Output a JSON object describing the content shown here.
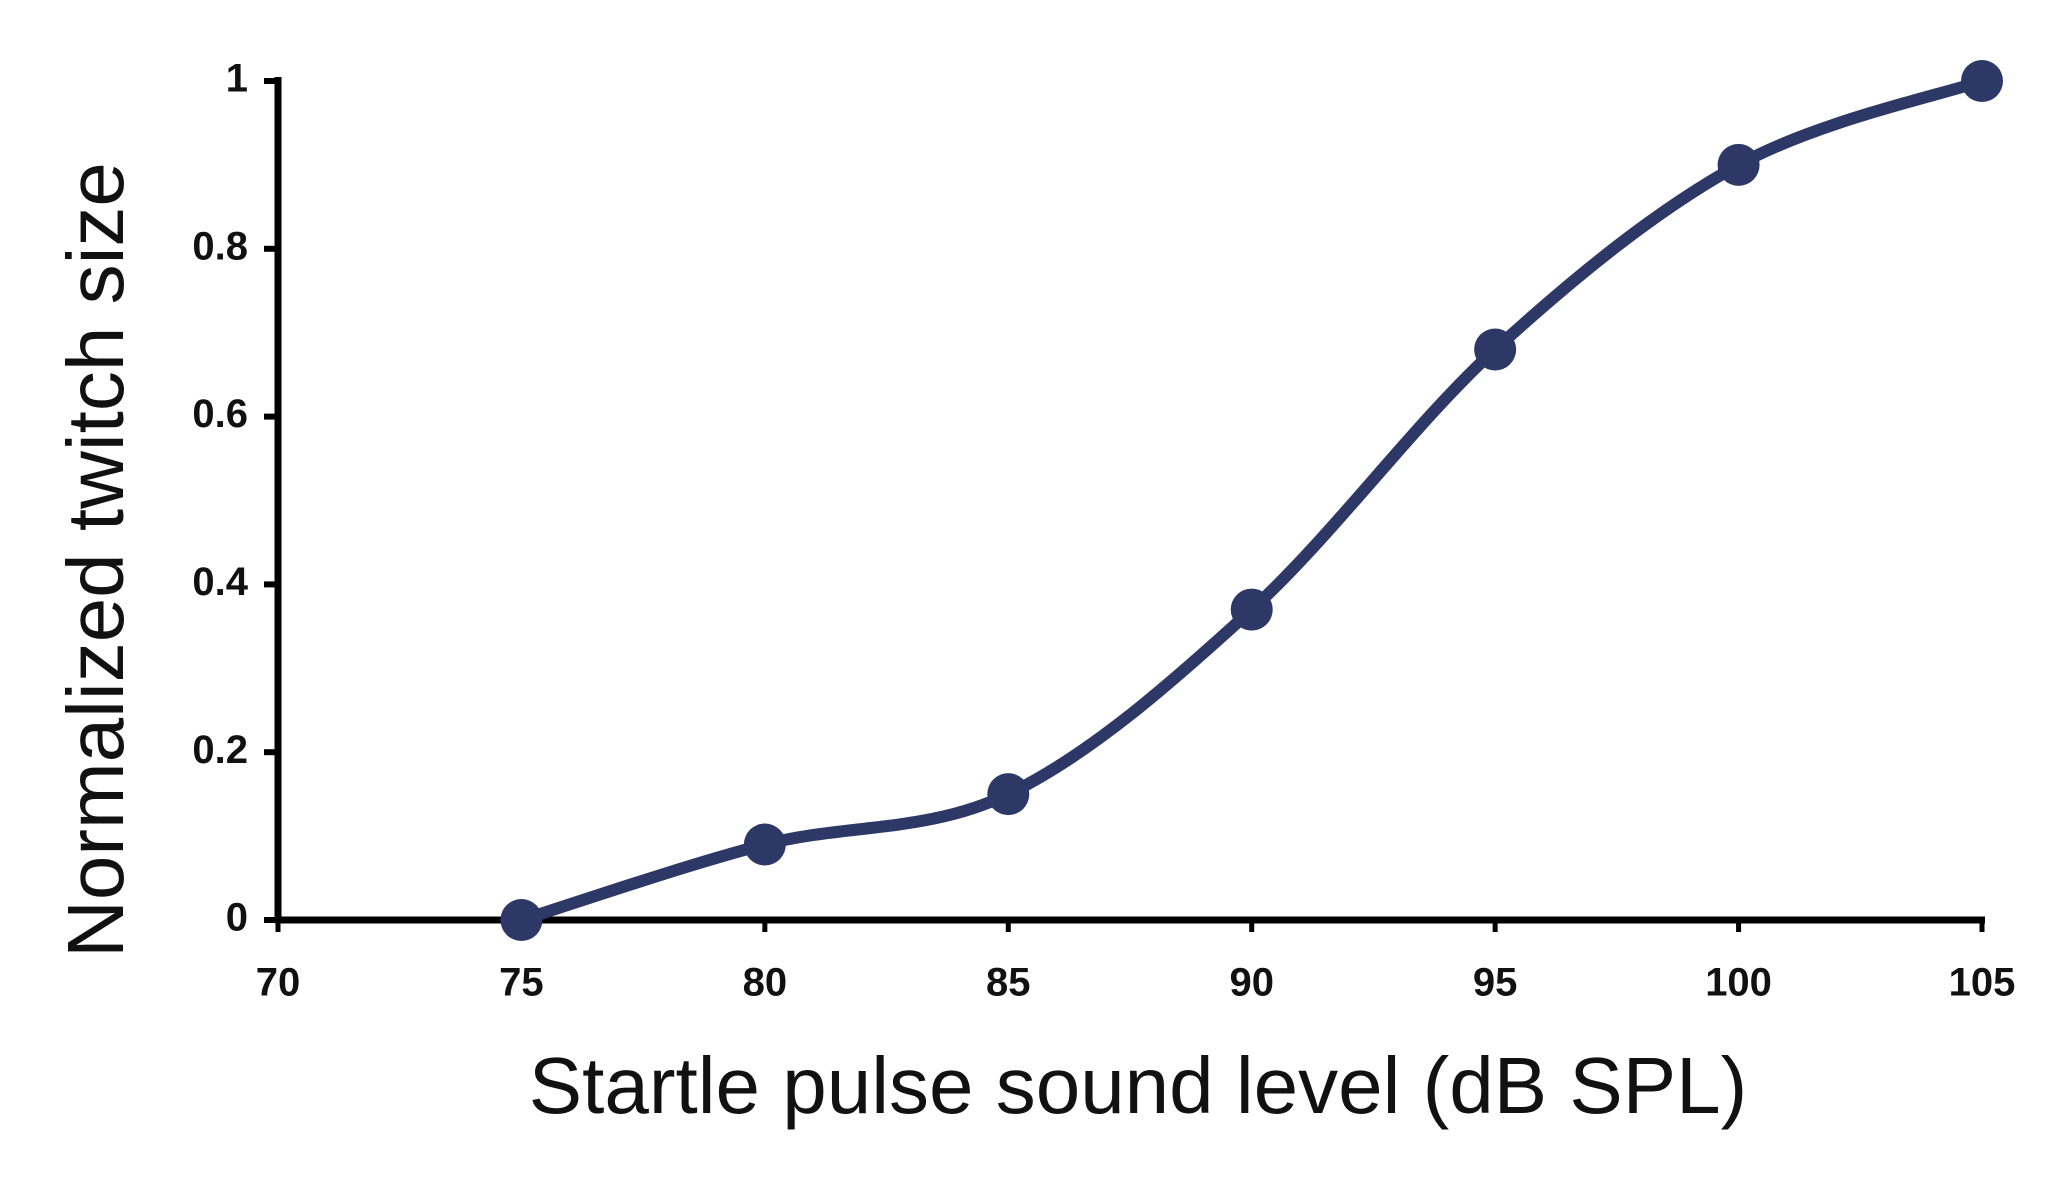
{
  "chart_data": {
    "type": "line",
    "x_label": "Startle pulse sound level (dB SPL)",
    "y_label": "Normalized twitch size",
    "x": [
      75,
      80,
      85,
      90,
      95,
      100,
      105
    ],
    "series": [
      {
        "color": "#2e3866",
        "values": [
          0,
          0.09,
          0.15,
          0.37,
          0.68,
          0.9,
          1
        ]
      }
    ],
    "xlim": [
      70,
      105
    ],
    "xticks": [
      70,
      75,
      80,
      85,
      90,
      95,
      100,
      105
    ],
    "ylim": [
      0,
      1
    ],
    "yticks": [
      0,
      0.2,
      0.4,
      0.6,
      0.8,
      1
    ],
    "smooth": true,
    "markers": true
  }
}
